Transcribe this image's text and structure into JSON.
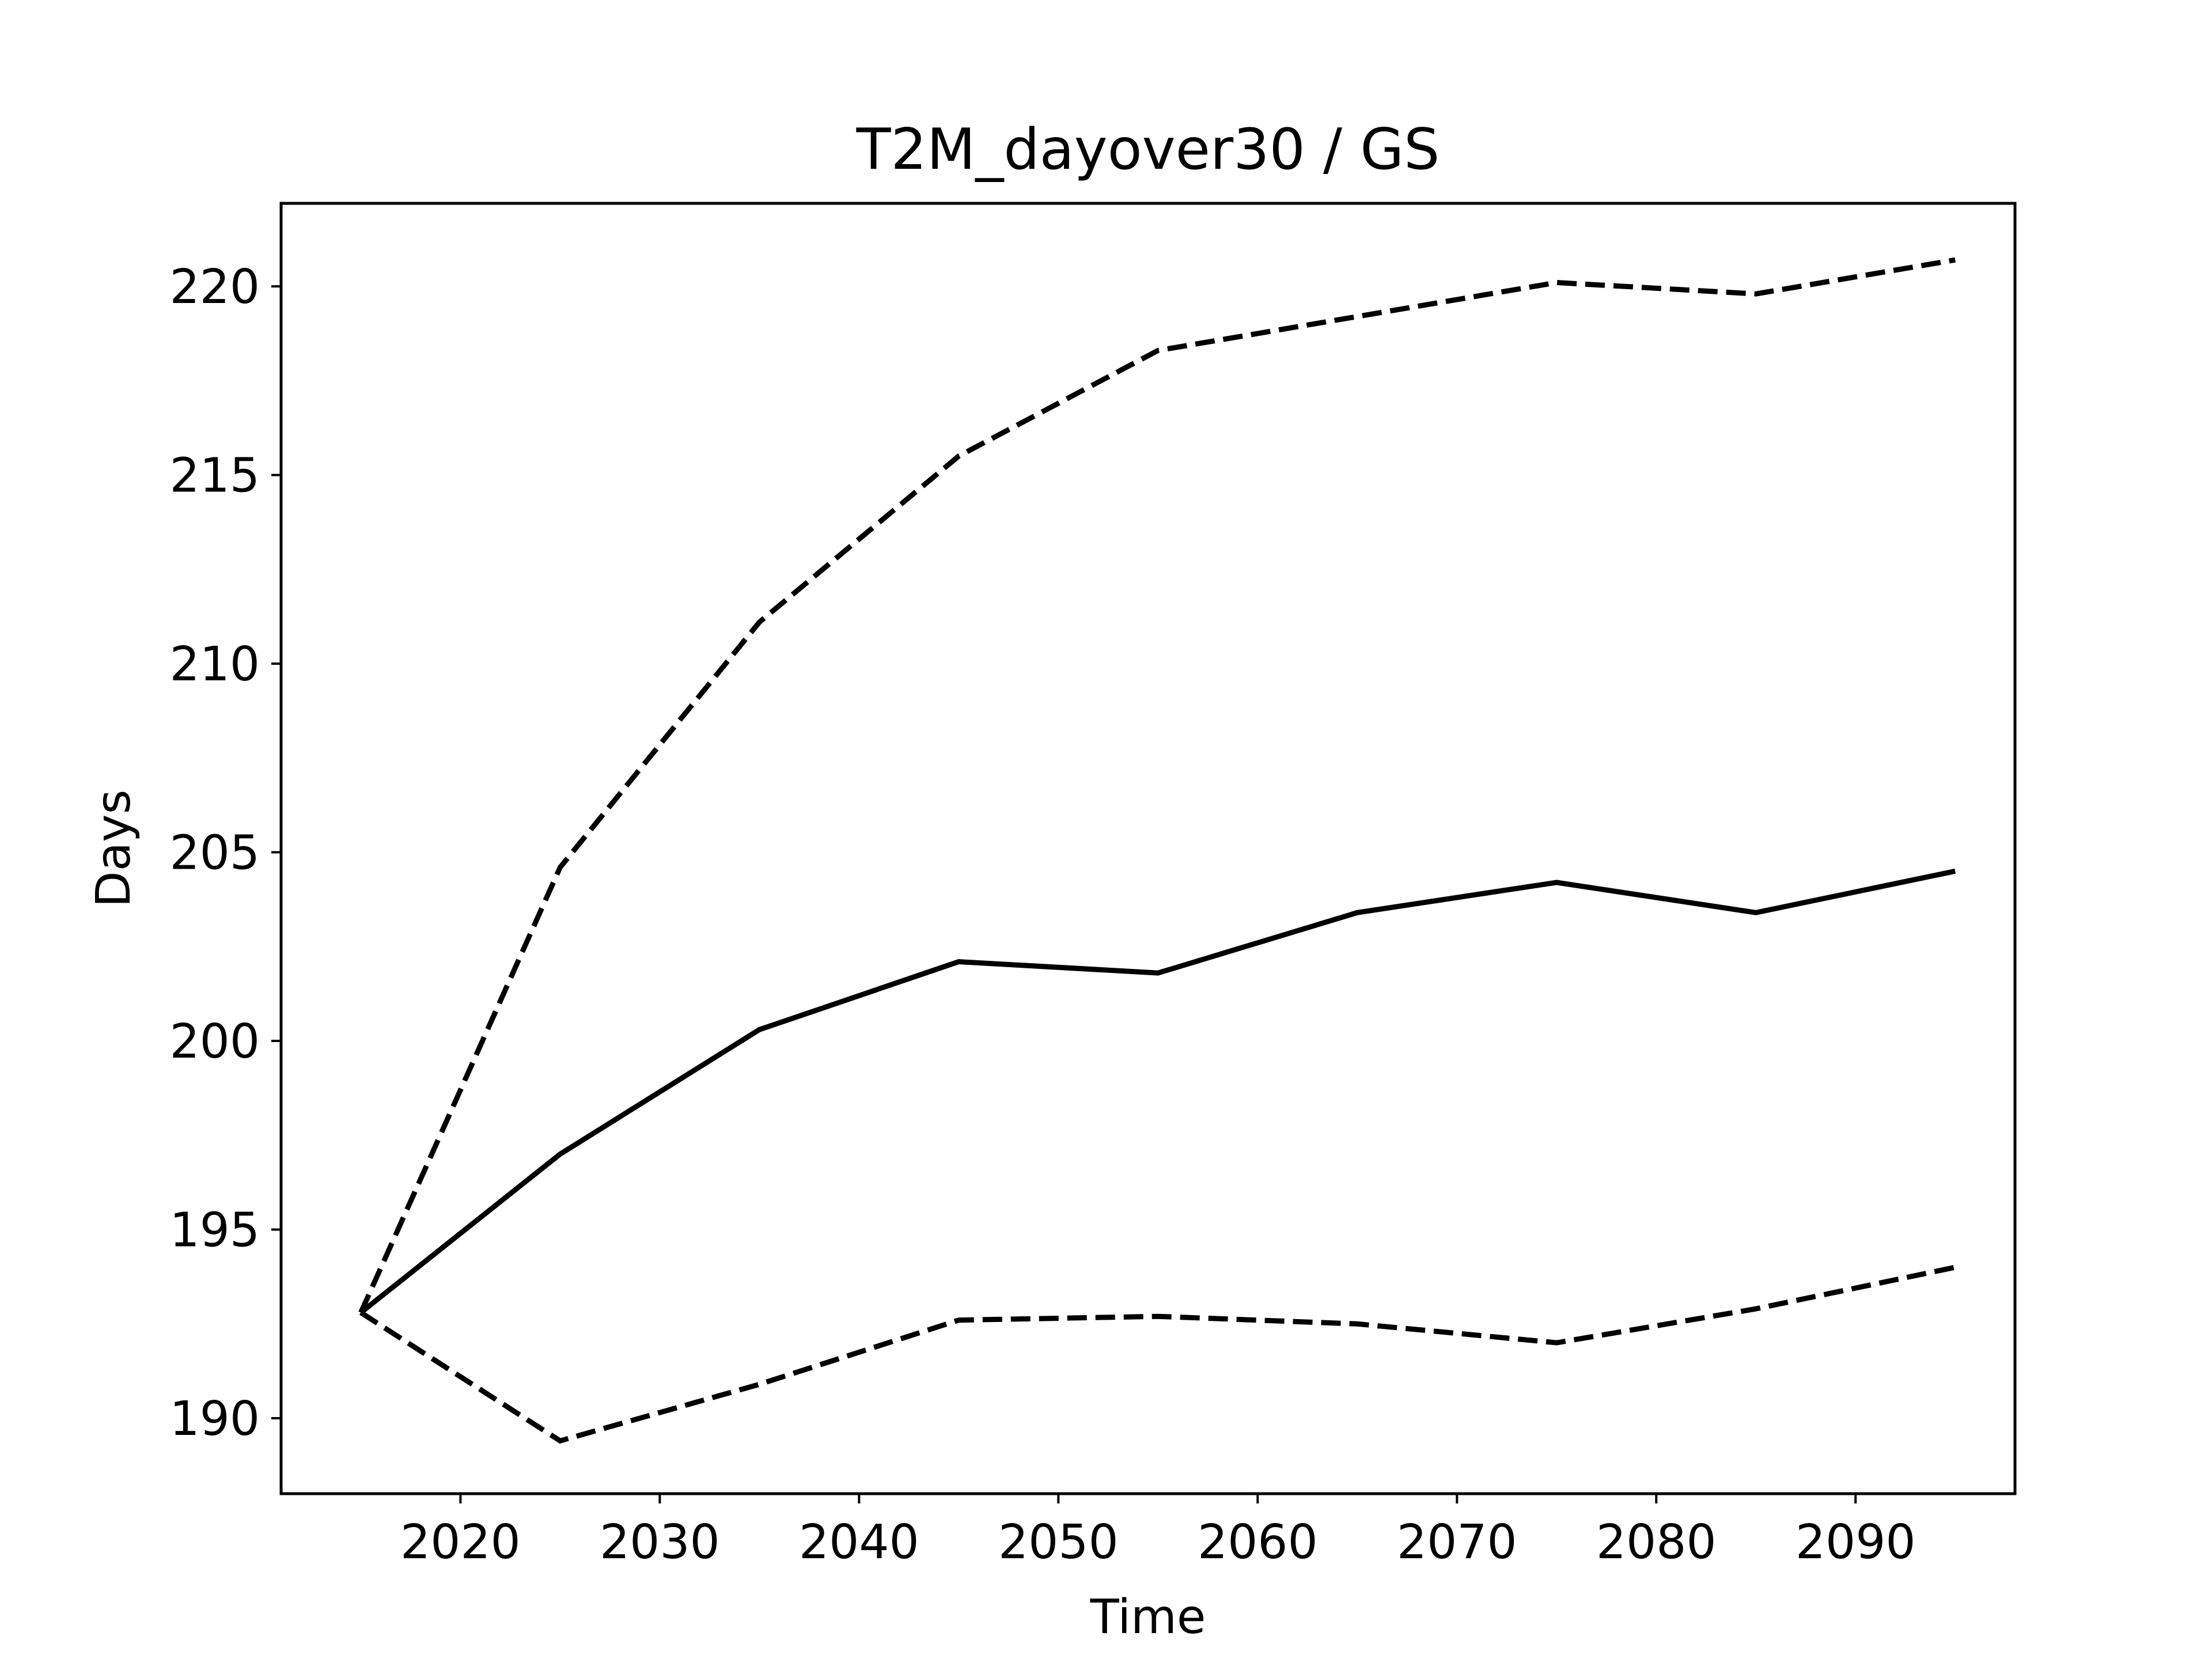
{
  "chart_data": {
    "type": "line",
    "title": "T2M_dayover30 / GS",
    "xlabel": "Time",
    "ylabel": "Days",
    "xlim": [
      2011,
      2098
    ],
    "ylim": [
      188,
      222.2
    ],
    "xticks": [
      2020,
      2030,
      2040,
      2050,
      2060,
      2070,
      2080,
      2090
    ],
    "yticks": [
      190,
      195,
      200,
      205,
      210,
      215,
      220
    ],
    "grid": false,
    "legend": false,
    "x": [
      2015,
      2025,
      2035,
      2045,
      2055,
      2065,
      2075,
      2085,
      2095
    ],
    "series": [
      {
        "style": "solid",
        "color": "#000000",
        "values": [
          192.8,
          197.0,
          200.3,
          202.1,
          201.8,
          203.4,
          204.2,
          203.4,
          204.5
        ]
      },
      {
        "style": "dashed",
        "color": "#000000",
        "values": [
          192.8,
          204.6,
          211.1,
          215.5,
          218.3,
          219.2,
          220.1,
          219.8,
          220.7
        ]
      },
      {
        "style": "dashed",
        "color": "#000000",
        "values": [
          192.8,
          189.4,
          190.9,
          192.6,
          192.7,
          192.5,
          192.0,
          192.9,
          194.0
        ]
      }
    ]
  }
}
